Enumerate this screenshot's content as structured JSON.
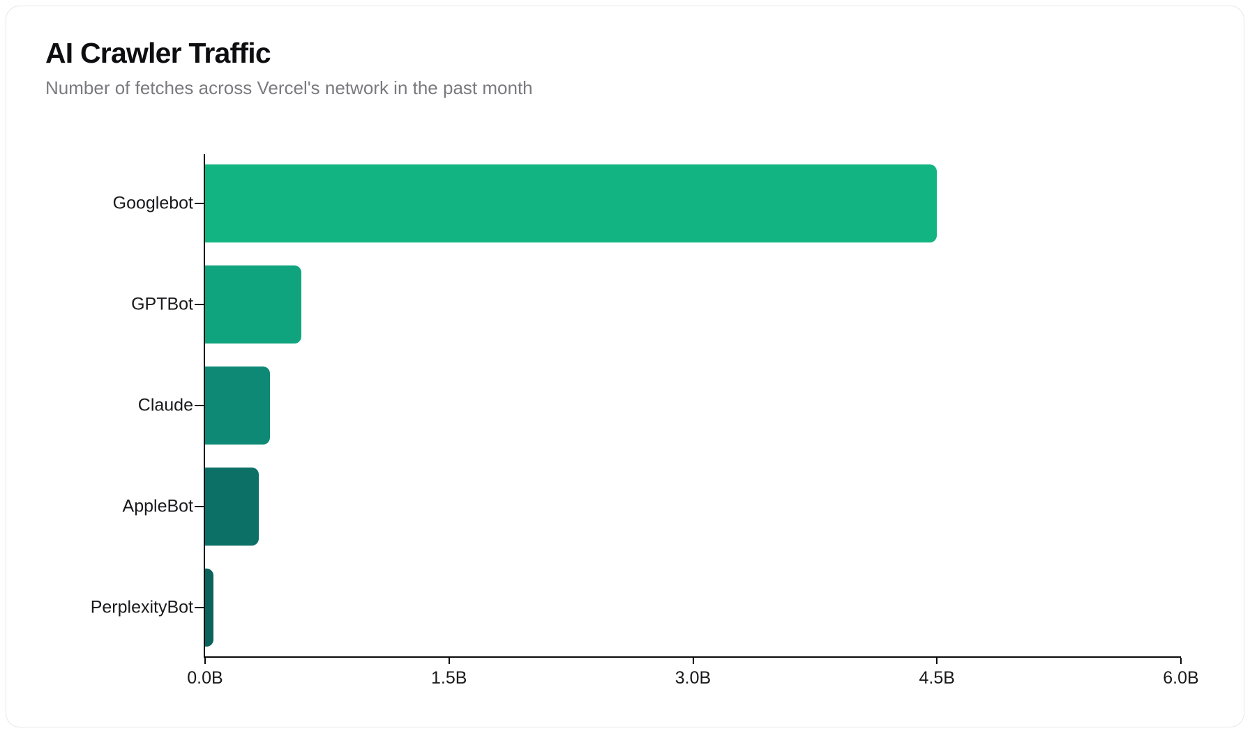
{
  "card": {
    "title": "AI Crawler Traffic",
    "subtitle": "Number of fetches across Vercel's network in the past month"
  },
  "chart_data": {
    "type": "bar",
    "orientation": "horizontal",
    "title": "AI Crawler Traffic",
    "subtitle": "Number of fetches across Vercel's network in the past month",
    "categories": [
      "Googlebot",
      "GPTBot",
      "Claude",
      "AppleBot",
      "PerplexityBot"
    ],
    "values": [
      4.5,
      0.59,
      0.4,
      0.33,
      0.05
    ],
    "unit": "B",
    "value_description": "billions of fetches",
    "xlabel": "",
    "ylabel": "",
    "xlim": [
      0,
      6
    ],
    "x_ticks": [
      "0.0B",
      "1.5B",
      "3.0B",
      "4.5B",
      "6.0B"
    ],
    "x_tick_values": [
      0,
      1.5,
      3,
      4.5,
      6
    ],
    "bar_colors": [
      "#12b581",
      "#0fa47d",
      "#0e8976",
      "#0c7066",
      "#0b635c"
    ],
    "axis_color": "#0a0a0a",
    "grid": false,
    "legend": false
  }
}
